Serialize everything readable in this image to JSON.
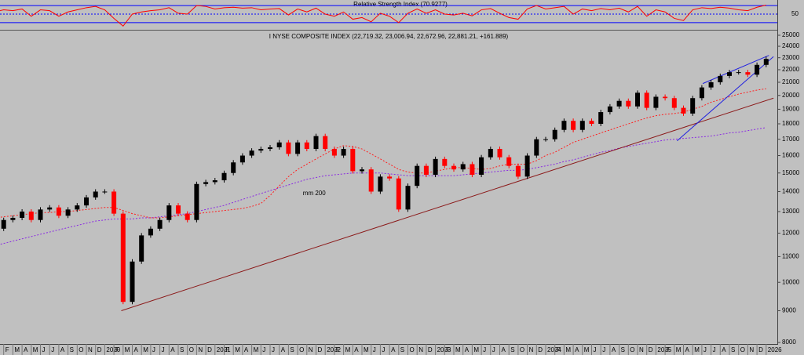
{
  "chart_data": {
    "type": "candlestick",
    "title": "I NYSE COMPOSITE INDEX (22,719.32, 23,006.94, 22,672.96, 22,881.21, +161.889)",
    "log": true,
    "up_color": "#000000",
    "down_color": "#ff0000",
    "categories": [
      "9",
      "F",
      "M",
      "A",
      "M",
      "J",
      "J",
      "A",
      "S",
      "O",
      "N",
      "D",
      "2020",
      "F",
      "M",
      "A",
      "M",
      "J",
      "J",
      "A",
      "S",
      "O",
      "N",
      "D",
      "2021",
      "F",
      "M",
      "A",
      "M",
      "J",
      "J",
      "A",
      "S",
      "O",
      "N",
      "D",
      "2022",
      "F",
      "M",
      "A",
      "M",
      "J",
      "J",
      "A",
      "S",
      "O",
      "N",
      "D",
      "2023",
      "F",
      "M",
      "A",
      "M",
      "J",
      "J",
      "A",
      "S",
      "O",
      "N",
      "D",
      "2024",
      "F",
      "M",
      "A",
      "M",
      "J",
      "J",
      "A",
      "S",
      "O",
      "N",
      "D",
      "2025",
      "F",
      "M",
      "A",
      "M",
      "J",
      "J",
      "A",
      "S",
      "O",
      "N",
      "D",
      "2026"
    ],
    "closes": [
      12200,
      12600,
      12700,
      13000,
      12600,
      13100,
      13200,
      12800,
      13100,
      13300,
      13700,
      14000,
      14000,
      12900,
      9300,
      10800,
      11900,
      12200,
      12600,
      13300,
      12900,
      12600,
      14400,
      14500,
      14600,
      15000,
      15600,
      16000,
      16300,
      16400,
      16500,
      16800,
      16100,
      16800,
      16400,
      17200,
      16400,
      16000,
      16400,
      15100,
      15200,
      14000,
      14800,
      14700,
      13100,
      14300,
      15400,
      14900,
      15800,
      15400,
      15200,
      15500,
      14900,
      15900,
      16400,
      15900,
      15400,
      14800,
      16000,
      17000,
      17000,
      17600,
      18200,
      17600,
      18200,
      18000,
      18800,
      19200,
      19600,
      19200,
      20200,
      19100,
      19900,
      19800,
      19100,
      18700,
      19800,
      20600,
      21000,
      21500,
      21800,
      21800,
      21600,
      22400,
      22900
    ],
    "moving_averages": [
      {
        "label": "mm 200",
        "color": "#8a2be2",
        "values": [
          11450,
          11550,
          11650,
          11750,
          11850,
          11950,
          12050,
          12150,
          12250,
          12350,
          12450,
          12550,
          12600,
          12650,
          12650,
          12650,
          12700,
          12700,
          12750,
          12800,
          12850,
          12900,
          13000,
          13100,
          13200,
          13300,
          13450,
          13600,
          13750,
          13900,
          14050,
          14200,
          14350,
          14500,
          14650,
          14750,
          14850,
          14900,
          14950,
          15000,
          15000,
          15000,
          15000,
          14950,
          14900,
          14850,
          14850,
          14850,
          14850,
          14850,
          14850,
          14900,
          14950,
          15000,
          15050,
          15100,
          15150,
          15150,
          15200,
          15300,
          15400,
          15500,
          15650,
          15750,
          15900,
          16050,
          16200,
          16300,
          16450,
          16550,
          16650,
          16750,
          16850,
          16950,
          17000,
          17050,
          17100,
          17150,
          17200,
          17300,
          17400,
          17450,
          17550,
          17650,
          17750
        ]
      },
      {
        "color": "#ff2020",
        "values": [
          12700,
          12750,
          12800,
          12850,
          12900,
          12950,
          12950,
          13000,
          13000,
          13050,
          13100,
          13150,
          13200,
          13200,
          13050,
          12900,
          12800,
          12700,
          12700,
          12750,
          12800,
          12850,
          12900,
          12950,
          13000,
          13050,
          13100,
          13150,
          13250,
          13400,
          13800,
          14300,
          14800,
          15200,
          15500,
          15800,
          16100,
          16400,
          16600,
          16550,
          16400,
          16100,
          15800,
          15500,
          15200,
          15050,
          15000,
          15000,
          15100,
          15200,
          15300,
          15300,
          15250,
          15200,
          15250,
          15400,
          15500,
          15500,
          15500,
          15700,
          16000,
          16200,
          16500,
          16800,
          17000,
          17200,
          17400,
          17600,
          17800,
          18000,
          18200,
          18400,
          18550,
          18650,
          18700,
          18800,
          19000,
          19200,
          19500,
          19700,
          19900,
          20100,
          20250,
          20400,
          20500
        ]
      }
    ],
    "trendlines": [
      {
        "color": "#8b1a1a",
        "from": [
          13.8,
          9000
        ],
        "to": [
          84.8,
          19800
        ]
      },
      {
        "color": "#2020e0",
        "from": [
          74.3,
          16900
        ],
        "to": [
          84.8,
          23100
        ]
      },
      {
        "color": "#2020e0",
        "from": [
          77.1,
          20900
        ],
        "to": [
          84.3,
          23200
        ]
      }
    ],
    "ylim": [
      8000,
      25000
    ],
    "yticks": [
      8000,
      9000,
      10000,
      11000,
      12000,
      13000,
      14000,
      15000,
      16000,
      17000,
      18000,
      19000,
      20000,
      21000,
      22000,
      23000,
      24000,
      25000
    ],
    "rsi": {
      "title": "Relative Strength Index (70.9277)",
      "color": "#ff0000",
      "level_color": "#0000ff",
      "ylim": [
        17,
        83
      ],
      "yticks": [
        50
      ],
      "levels": [
        30,
        70
      ],
      "values": [
        55,
        60,
        58,
        62,
        45,
        60,
        58,
        45,
        55,
        60,
        65,
        68,
        60,
        40,
        22,
        50,
        55,
        58,
        60,
        65,
        52,
        50,
        70,
        68,
        62,
        65,
        66,
        64,
        65,
        60,
        62,
        63,
        48,
        62,
        55,
        64,
        50,
        45,
        55,
        38,
        42,
        32,
        52,
        45,
        30,
        52,
        62,
        52,
        60,
        50,
        48,
        52,
        46,
        60,
        63,
        52,
        42,
        38,
        62,
        70,
        62,
        65,
        68,
        50,
        62,
        58,
        63,
        60,
        64,
        55,
        68,
        45,
        60,
        55,
        40,
        35,
        60,
        65,
        63,
        66,
        64,
        60,
        58,
        66,
        71
      ]
    }
  }
}
